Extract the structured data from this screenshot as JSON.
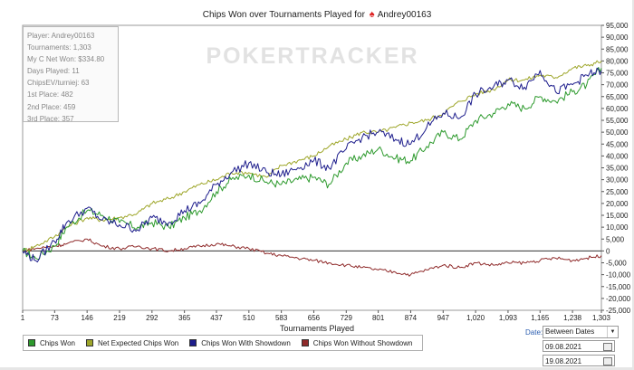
{
  "title": "Chips Won over Tournaments Played for",
  "player": "Andrey00163",
  "watermark": "POKERTRACKER",
  "stats": [
    "Player: Andrey00163",
    "Tournaments: 1,303",
    "My C Net Won: $334.80",
    "Days Played: 11",
    "ChipsEV/turniej: 63",
    "1st Place: 482",
    "2nd Place: 459",
    "3rd Place: 357"
  ],
  "legend": [
    "Chips Won",
    "Net Expected Chips Won",
    "Chips Won With Showdown",
    "Chips Won Without Showdown"
  ],
  "date_filter": {
    "label": "Date:",
    "mode": "Between Dates",
    "from": "09.08.2021",
    "to": "19.08.2021"
  },
  "colors": {
    "chips_won": "#2d9a2d",
    "net_expected": "#9ea62a",
    "with_showdown": "#1d1d8c",
    "without_showdown": "#8f2a2a"
  },
  "chart_data": {
    "type": "line",
    "xlabel": "Tournaments Played",
    "ylabel": "",
    "xlim": [
      1,
      1303
    ],
    "ylim": [
      -25000,
      95000
    ],
    "x_ticks": [
      "1",
      "73",
      "146",
      "219",
      "292",
      "365",
      "437",
      "510",
      "583",
      "656",
      "729",
      "801",
      "874",
      "947",
      "1,020",
      "1,093",
      "1,165",
      "1,238",
      "1,303"
    ],
    "y_ticks": [
      "95,000",
      "90,000",
      "85,000",
      "80,000",
      "75,000",
      "70,000",
      "65,000",
      "60,000",
      "55,000",
      "50,000",
      "45,000",
      "40,000",
      "35,000",
      "30,000",
      "25,000",
      "20,000",
      "15,000",
      "10,000",
      "5,000",
      "0",
      "-5,000",
      "-10,000",
      "-15,000",
      "-20,000",
      "-25,000"
    ],
    "series": [
      {
        "name": "Chips Won",
        "x": [
          1,
          30,
          73,
          100,
          146,
          180,
          219,
          260,
          292,
          330,
          365,
          400,
          437,
          470,
          510,
          550,
          583,
          620,
          656,
          690,
          729,
          765,
          801,
          840,
          874,
          910,
          947,
          985,
          1020,
          1060,
          1093,
          1130,
          1165,
          1200,
          1238,
          1270,
          1303
        ],
        "y": [
          0,
          -3000,
          2000,
          10000,
          17000,
          15000,
          12000,
          10000,
          12000,
          10000,
          14000,
          17000,
          25000,
          30000,
          32000,
          29000,
          28000,
          30000,
          31000,
          28000,
          37000,
          40000,
          43000,
          39000,
          38000,
          44000,
          50000,
          47000,
          55000,
          58000,
          62000,
          60000,
          65000,
          63000,
          67000,
          70000,
          77000
        ]
      },
      {
        "name": "Net Expected Chips Won",
        "x": [
          1,
          30,
          73,
          100,
          146,
          180,
          219,
          260,
          292,
          330,
          365,
          400,
          437,
          470,
          510,
          550,
          583,
          620,
          656,
          690,
          729,
          765,
          801,
          840,
          874,
          910,
          947,
          985,
          1020,
          1060,
          1093,
          1130,
          1165,
          1200,
          1238,
          1270,
          1303
        ],
        "y": [
          0,
          2000,
          6000,
          10000,
          14000,
          13000,
          14000,
          16000,
          20000,
          22000,
          25000,
          28000,
          30000,
          33000,
          33000,
          31000,
          36000,
          38000,
          40000,
          44000,
          47000,
          50000,
          50000,
          52000,
          54000,
          55000,
          58000,
          63000,
          66000,
          68000,
          72000,
          72000,
          74000,
          73000,
          77000,
          78000,
          80000
        ]
      },
      {
        "name": "Chips Won With Showdown",
        "x": [
          1,
          30,
          73,
          100,
          146,
          180,
          219,
          260,
          292,
          330,
          365,
          400,
          437,
          470,
          510,
          550,
          583,
          620,
          656,
          690,
          729,
          765,
          801,
          840,
          874,
          910,
          947,
          985,
          1020,
          1060,
          1093,
          1130,
          1165,
          1200,
          1238,
          1270,
          1303
        ],
        "y": [
          0,
          -4000,
          4000,
          12000,
          18000,
          13000,
          11000,
          9000,
          14000,
          12000,
          17000,
          20000,
          28000,
          33000,
          37000,
          33000,
          32000,
          35000,
          38000,
          35000,
          43000,
          48000,
          50000,
          47000,
          45000,
          52000,
          58000,
          56000,
          66000,
          69000,
          72000,
          69000,
          76000,
          67000,
          70000,
          74000,
          76000
        ]
      },
      {
        "name": "Chips Won Without Showdown",
        "x": [
          1,
          30,
          73,
          100,
          146,
          180,
          219,
          260,
          292,
          330,
          365,
          400,
          437,
          470,
          510,
          550,
          583,
          620,
          656,
          690,
          729,
          765,
          801,
          840,
          874,
          910,
          947,
          985,
          1020,
          1060,
          1093,
          1130,
          1165,
          1200,
          1238,
          1270,
          1303
        ],
        "y": [
          0,
          1000,
          2000,
          3000,
          5000,
          2000,
          1000,
          2000,
          1000,
          0,
          1000,
          2000,
          3000,
          2000,
          1000,
          -1000,
          -2000,
          -3000,
          -4000,
          -5000,
          -6000,
          -7000,
          -8000,
          -9000,
          -10000,
          -8000,
          -6000,
          -7000,
          -5000,
          -6000,
          -5000,
          -5000,
          -4000,
          -3000,
          -4000,
          -3000,
          -2000
        ]
      }
    ]
  }
}
